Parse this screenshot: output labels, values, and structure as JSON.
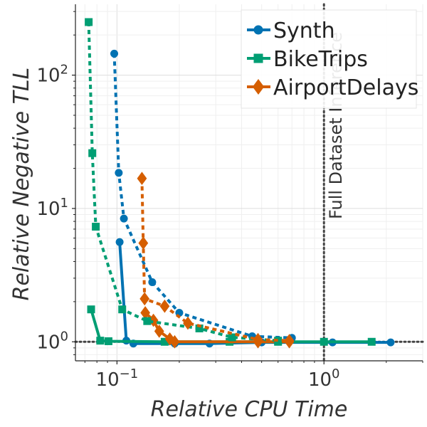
{
  "chart_data": {
    "type": "line",
    "xscale": "log",
    "yscale": "log",
    "xlabel": "Relative CPU Time",
    "ylabel": "Relative Negative TLL",
    "xlim": [
      0.063,
      3.0
    ],
    "ylim": [
      0.72,
      340
    ],
    "x_ticks": [
      {
        "value": 0.1,
        "base": "10",
        "exp": "−1"
      },
      {
        "value": 1,
        "base": "10",
        "exp": "0"
      }
    ],
    "y_ticks": [
      {
        "value": 1,
        "base": "10",
        "exp": "0"
      },
      {
        "value": 10,
        "base": "10",
        "exp": "1"
      },
      {
        "value": 100,
        "base": "10",
        "exp": "2"
      }
    ],
    "annotations": {
      "vline": {
        "x": 1.0,
        "label": "Full Dataset Inference"
      },
      "hline": {
        "y": 1.0
      }
    },
    "legend": {
      "position": "top-right",
      "entries": [
        "Synth",
        "BikeTrips",
        "AirportDelays"
      ]
    },
    "series": [
      {
        "name": "Synth",
        "color": "#0072B2",
        "marker": "circle",
        "style": "dotted",
        "group": "dotted",
        "x": [
          0.097,
          0.102,
          0.108,
          0.148,
          0.2,
          0.45,
          0.7
        ],
        "y": [
          145,
          18.5,
          8.4,
          2.8,
          1.65,
          1.1,
          1.07
        ]
      },
      {
        "name": "BikeTrips",
        "color": "#009E73",
        "marker": "square",
        "style": "dotted",
        "group": "dotted",
        "x": [
          0.073,
          0.076,
          0.079,
          0.106,
          0.14,
          0.25,
          0.36,
          0.6
        ],
        "y": [
          250,
          26,
          7.3,
          1.75,
          1.43,
          1.26,
          1.08,
          1.02
        ]
      },
      {
        "name": "AirportDelays",
        "color": "#D55E00",
        "marker": "diamond",
        "style": "dotted",
        "group": "dotted",
        "x": [
          0.132,
          0.134,
          0.136,
          0.17,
          0.22,
          0.48,
          0.68
        ],
        "y": [
          16.8,
          5.5,
          2.1,
          1.85,
          1.38,
          1.04,
          1.02
        ]
      },
      {
        "name": "Synth",
        "color": "#0072B2",
        "marker": "circle",
        "style": "solid",
        "group": "solid",
        "x": [
          0.103,
          0.111,
          0.12,
          0.19,
          0.28,
          0.5,
          1.1,
          2.1
        ],
        "y": [
          5.6,
          1.02,
          0.97,
          0.97,
          0.97,
          0.99,
          0.99,
          0.99
        ]
      },
      {
        "name": "BikeTrips",
        "color": "#009E73",
        "marker": "square",
        "style": "solid",
        "group": "solid",
        "x": [
          0.075,
          0.083,
          0.091,
          0.17,
          0.35,
          0.6,
          1.0,
          1.7
        ],
        "y": [
          1.75,
          1.02,
          1.01,
          1.0,
          1.0,
          1.0,
          1.0,
          1.0
        ]
      },
      {
        "name": "AirportDelays",
        "color": "#D55E00",
        "marker": "diamond",
        "style": "solid",
        "group": "solid",
        "x": [
          0.137,
          0.15,
          0.16,
          0.18,
          0.19,
          0.48,
          0.68
        ],
        "y": [
          1.65,
          1.45,
          1.2,
          1.05,
          1.0,
          1.0,
          1.0
        ]
      }
    ]
  }
}
